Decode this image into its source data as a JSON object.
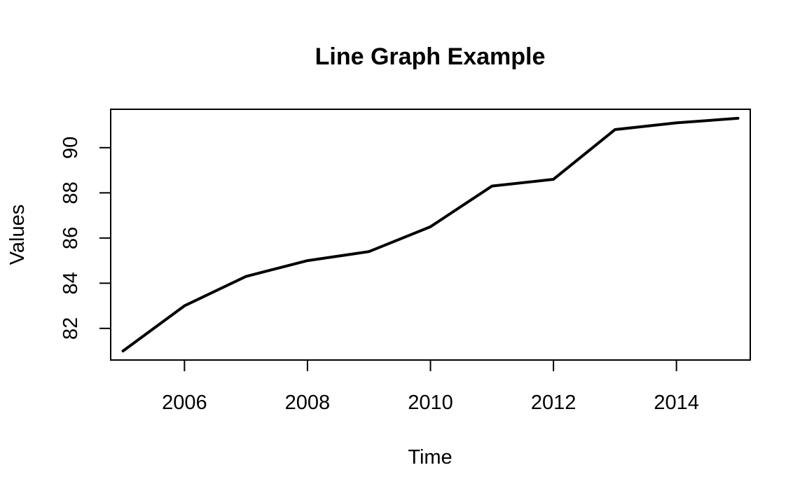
{
  "chart_data": {
    "type": "line",
    "title": "Line Graph Example",
    "xlabel": "Time",
    "ylabel": "Values",
    "x": [
      2005,
      2006,
      2007,
      2008,
      2009,
      2010,
      2011,
      2012,
      2013,
      2014,
      2015
    ],
    "series": [
      {
        "values": [
          81.0,
          83.0,
          84.3,
          85.0,
          85.4,
          86.5,
          88.3,
          88.6,
          90.8,
          91.1,
          91.3
        ]
      }
    ],
    "xlim": [
      2004.8,
      2015.2
    ],
    "ylim": [
      80.6,
      91.7
    ],
    "xticks": [
      2006,
      2008,
      2010,
      2012,
      2014
    ],
    "xtick_labels": [
      "2006",
      "2008",
      "2010",
      "2012",
      "2014"
    ],
    "yticks": [
      82,
      84,
      86,
      88,
      90
    ],
    "ytick_labels": [
      "82",
      "84",
      "86",
      "88",
      "90"
    ],
    "grid": false,
    "line_color": "#000000"
  }
}
